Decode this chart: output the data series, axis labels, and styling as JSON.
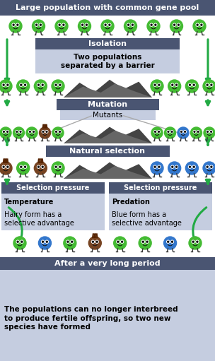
{
  "title_text": "Large population with common gene pool",
  "header_bg": "#4a5572",
  "header_fg": "white",
  "light_bg": "#c5cde0",
  "isolation_label": "Isolation",
  "isolation_desc": "Two populations\nseparated by a barrier",
  "mutation_label": "Mutation",
  "mutants_label": "Mutants",
  "natural_sel_label": "Natural selection",
  "sel_pressure_label": "Selection pressure",
  "sel_left_title": "Temperature",
  "sel_left_desc": "Hairy form has a\nselective advantage",
  "sel_right_title": "Predation",
  "sel_right_desc": "Blue form has a\nselective advantage",
  "after_label": "After a very long period",
  "after_desc": "The populations can no longer interbreed\nto produce fertile offspring, so two new\nspecies have formed",
  "arrow_color": "#22aa44",
  "mtn_dark": "#444444",
  "mtn_mid": "#666666",
  "mtn_light": "#888899",
  "green_c": "#44bb33",
  "brown_c": "#774422",
  "blue_c": "#3377cc",
  "white_bg": "#ffffff"
}
